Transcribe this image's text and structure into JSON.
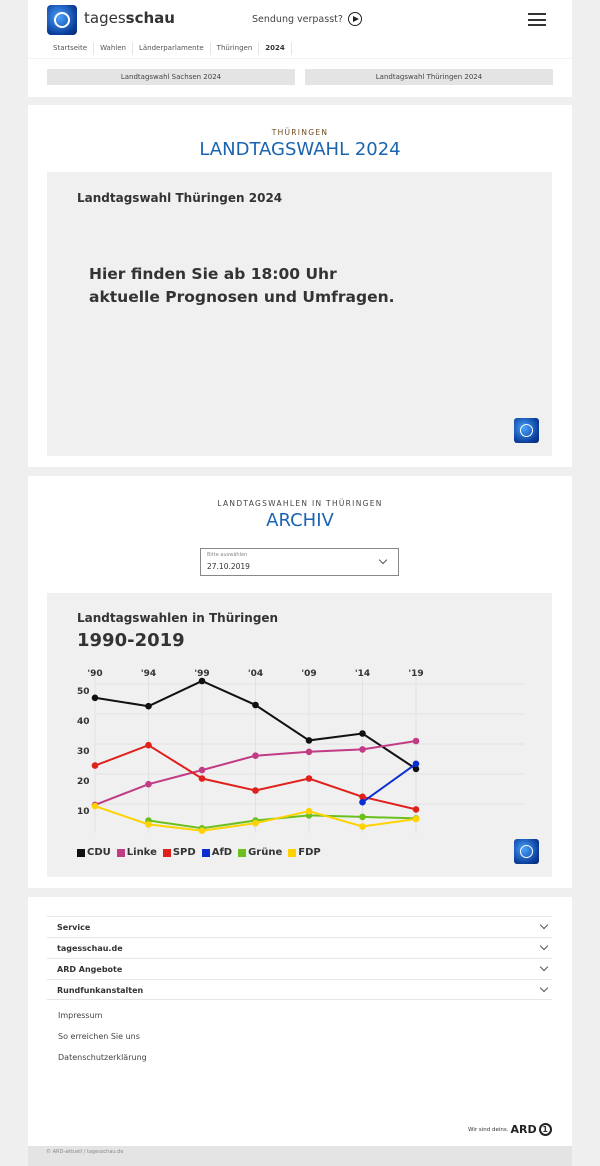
{
  "header": {
    "brand_light": "tages",
    "brand_bold": "schau",
    "missed": "Sendung verpasst?",
    "breadcrumb": [
      "Startseite",
      "Wahlen",
      "Länderparlamente",
      "Thüringen",
      "2024"
    ],
    "tabs": [
      "Landtagswahl Sachsen 2024",
      "Landtagswahl Thüringen 2024"
    ]
  },
  "live": {
    "kicker": "THÜRINGEN",
    "title": "LANDTAGSWAHL 2024",
    "box_title": "Landtagswahl Thüringen 2024",
    "message_line1": "Hier finden Sie ab 18:00 Uhr",
    "message_line2": "aktuelle Prognosen und Umfragen."
  },
  "archive": {
    "kicker": "LANDTAGSWAHLEN IN THÜRINGEN",
    "title": "ARCHIV",
    "select_label": "Bitte auswählen",
    "select_value": "27.10.2019"
  },
  "chart_data": {
    "type": "line",
    "title": "Landtagswahlen in Thüringen",
    "subtitle": "1990-2019",
    "categories": [
      "'90",
      "'94",
      "'99",
      "'04",
      "'09",
      "'14",
      "'19"
    ],
    "yticks": [
      50,
      40,
      30,
      20,
      10
    ],
    "ylim": [
      0,
      52
    ],
    "grid": true,
    "legend_placement": "bottom-left",
    "series": [
      {
        "name": "CDU",
        "color": "#111111",
        "values": [
          45.4,
          42.6,
          51.0,
          43.0,
          31.2,
          33.5,
          21.7
        ]
      },
      {
        "name": "Linke",
        "color": "#c23b85",
        "values": [
          9.7,
          16.6,
          21.3,
          26.1,
          27.4,
          28.2,
          31.0
        ]
      },
      {
        "name": "SPD",
        "color": "#e0201b",
        "values": [
          22.8,
          29.6,
          18.5,
          14.5,
          18.5,
          12.4,
          8.2
        ]
      },
      {
        "name": "AfD",
        "color": "#0a2fd0",
        "values": [
          null,
          null,
          null,
          null,
          null,
          10.6,
          23.4
        ]
      },
      {
        "name": "Grüne",
        "color": "#6cc01e",
        "values": [
          null,
          4.5,
          1.9,
          4.5,
          6.2,
          5.7,
          5.2
        ]
      },
      {
        "name": "FDP",
        "color": "#ffd200",
        "values": [
          9.3,
          3.2,
          1.1,
          3.6,
          7.6,
          2.5,
          5.0
        ]
      }
    ]
  },
  "footer": {
    "sections": [
      "Service",
      "tagesschau.de",
      "ARD Angebote",
      "Rundfunkanstalten"
    ],
    "links": [
      "Impressum",
      "So erreichen Sie uns",
      "Datenschutzerklärung"
    ],
    "slogan": "Wir sind deins.",
    "ard": "ARD",
    "copyright": "© ARD-aktuell / tagesschau.de"
  }
}
